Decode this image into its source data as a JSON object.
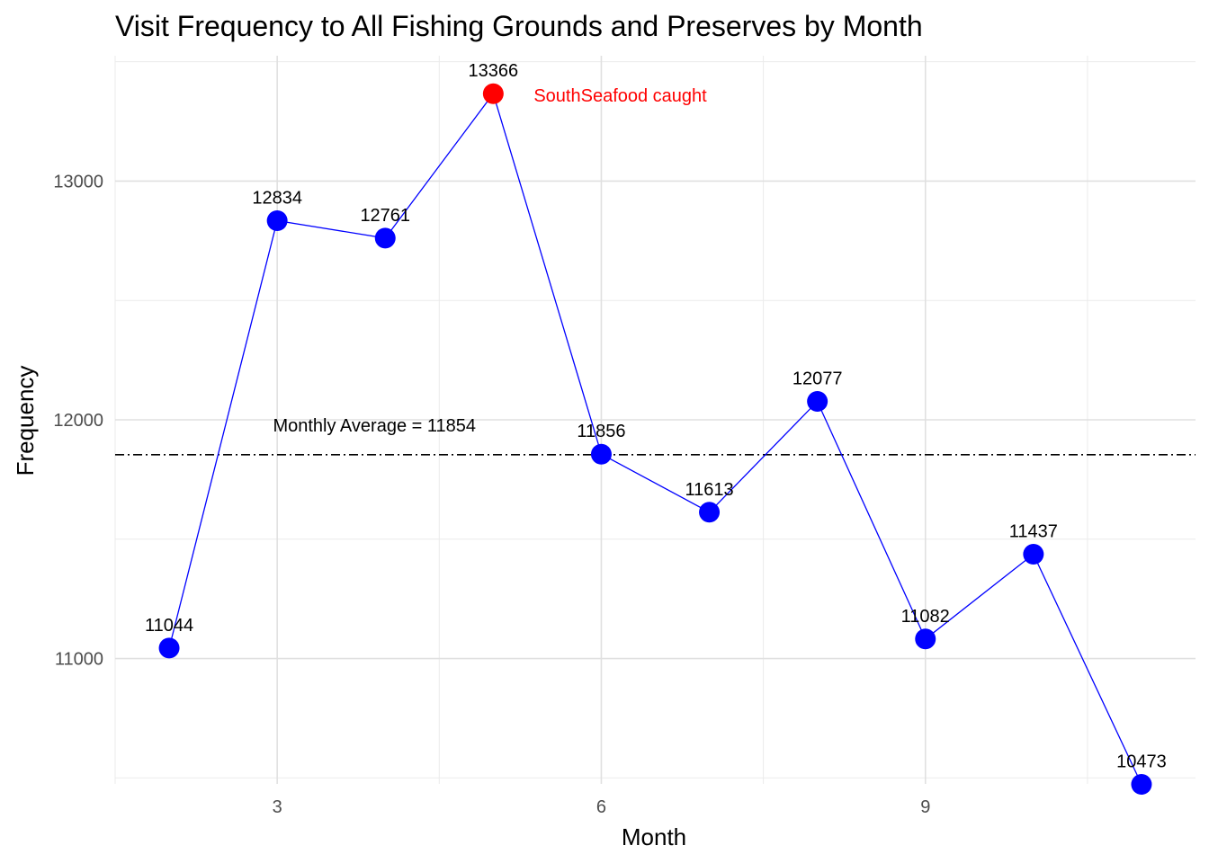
{
  "chart_data": {
    "type": "line",
    "title": "Visit Frequency to All Fishing Grounds and Preserves by Month",
    "xlabel": "Month",
    "ylabel": "Frequency",
    "xlim": [
      1.5,
      11.5
    ],
    "ylim": [
      10475,
      13525
    ],
    "x_ticks": [
      3,
      6,
      9
    ],
    "y_ticks": [
      11000,
      12000,
      13000
    ],
    "grid": true,
    "series": [
      {
        "color": "#0000ff",
        "x": [
          2,
          3,
          4,
          5,
          6,
          7,
          8,
          9,
          10,
          11
        ],
        "values": [
          11044,
          12834,
          12761,
          13366,
          11856,
          11613,
          12077,
          11082,
          11437,
          10473
        ]
      }
    ],
    "highlight": {
      "x": 5,
      "value": 13366,
      "color": "#ff0000",
      "label": "SouthSeafood caught"
    },
    "reference_line": {
      "value": 11854,
      "label": "Monthly Average = 11854",
      "style": "dashdot",
      "color": "#000000"
    }
  }
}
